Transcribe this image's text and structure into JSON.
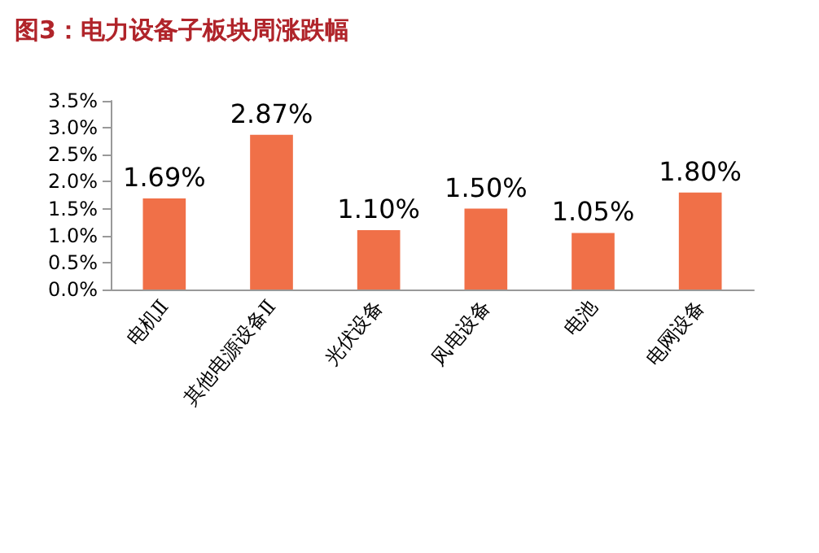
{
  "chart_data": {
    "type": "bar",
    "title": "图3：电力设备子板块周涨跌幅",
    "categories": [
      "电机Ⅱ",
      "其他电源设备Ⅱ",
      "光伏设备",
      "风电设备",
      "电池",
      "电网设备"
    ],
    "values": [
      1.69,
      2.87,
      1.1,
      1.5,
      1.05,
      1.8
    ],
    "value_labels": [
      "1.69%",
      "2.87%",
      "1.10%",
      "1.50%",
      "1.05%",
      "1.80%"
    ],
    "color": "#f07048",
    "ylim": [
      0,
      3.5
    ],
    "yticks": [
      {
        "value": 0,
        "label": "0.0%"
      },
      {
        "value": 0.5,
        "label": "0.5%"
      },
      {
        "value": 1,
        "label": "1.0%"
      },
      {
        "value": 1.5,
        "label": "1.5%"
      },
      {
        "value": 2,
        "label": "2.0%"
      },
      {
        "value": 2.5,
        "label": "2.5%"
      },
      {
        "value": 3,
        "label": "3.0%"
      },
      {
        "value": 3.5,
        "label": "3.5%"
      }
    ],
    "grid": false
  }
}
